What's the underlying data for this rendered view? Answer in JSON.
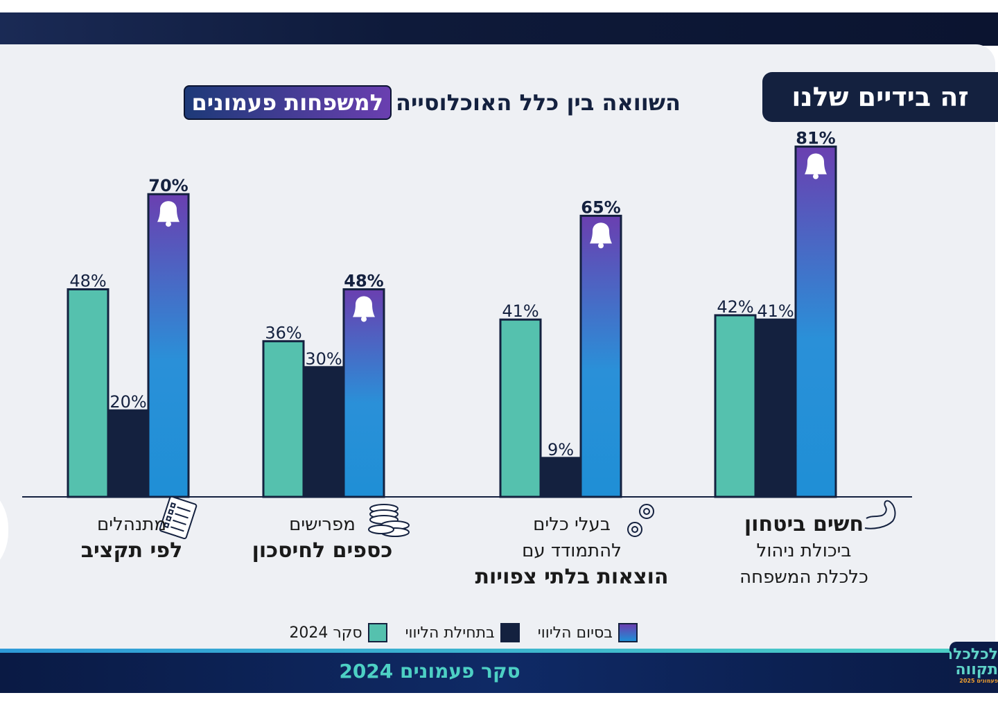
{
  "header": {
    "tag_label": "זה בידיים שלנו",
    "title_plain": "השוואה בין כלל האוכלוסייה",
    "title_highlight": "למשפחות פעמונים"
  },
  "categories": [
    {
      "lines": [
        {
          "text": "חשים ביטחון",
          "bold": true
        },
        {
          "text": "ביכולת ניהול",
          "bold": false
        },
        {
          "text": "כלכלת המשפחה",
          "bold": false
        }
      ],
      "icon": "muscle-arm-icon"
    },
    {
      "lines": [
        {
          "text": "בעלי כלים",
          "bold": false
        },
        {
          "text": "להתמודד עם",
          "bold": false
        },
        {
          "text": "הוצאות בלתי צפויות",
          "bold": true
        }
      ],
      "icon": "gears-icon"
    },
    {
      "lines": [
        {
          "text": "מפרישים",
          "bold": false
        },
        {
          "text": "כספים לחיסכון",
          "bold": true
        }
      ],
      "icon": "coins-icon"
    },
    {
      "lines": [
        {
          "text": "מתנהלים",
          "bold": false
        },
        {
          "text": "לפי תקציב",
          "bold": true
        }
      ],
      "icon": "budget-list-icon"
    }
  ],
  "chart_data": {
    "type": "bar",
    "title": "השוואה בין כלל האוכלוסייה למשפחות פעמונים",
    "categories": [
      "חשים ביטחון ביכולת ניהול כלכלת המשפחה",
      "בעלי כלים להתמודד עם הוצאות בלתי צפויות",
      "מפרישים כספים לחיסכון",
      "מתנהלים לפי תקציב"
    ],
    "series": [
      {
        "name": "סקר 2024",
        "values": [
          42,
          41,
          36,
          48
        ],
        "labels": [
          "42%",
          "41%",
          "36%",
          "48%"
        ]
      },
      {
        "name": "בתחילת הליווי",
        "values": [
          41,
          null,
          30,
          20
        ],
        "labels": [
          "41%",
          "",
          "30%",
          "20%"
        ]
      },
      {
        "name": "בסיום הליווי",
        "values": [
          81,
          65,
          48,
          70
        ],
        "labels": [
          "81%",
          "65%",
          "48%",
          "70%"
        ]
      }
    ],
    "extra_labels": [
      {
        "category_index": 1,
        "series_index": 1,
        "value": 9,
        "label": "9%"
      }
    ],
    "ylim": [
      0,
      85
    ],
    "xlabel": "",
    "ylabel": "",
    "legend_position": "bottom",
    "grid": false
  },
  "legend": {
    "items": [
      {
        "label": "בסיום הליווי",
        "color": "#1f8fd6"
      },
      {
        "label": "בתחילת הליווי",
        "color": "#14213f"
      },
      {
        "label": "סקר 2024",
        "color": "#55c1ae"
      }
    ]
  },
  "footer": {
    "text": "סקר פעמונים 2024"
  },
  "brand": {
    "line1": "לכלכלה",
    "line2": "תקווה",
    "line3": "פעמונים 2025"
  },
  "colors": {
    "survey": "#55c1ae",
    "start": "#14213f",
    "end_top": "#6a3fb0",
    "end_bottom": "#1f8fd6",
    "navy": "#14213f"
  }
}
